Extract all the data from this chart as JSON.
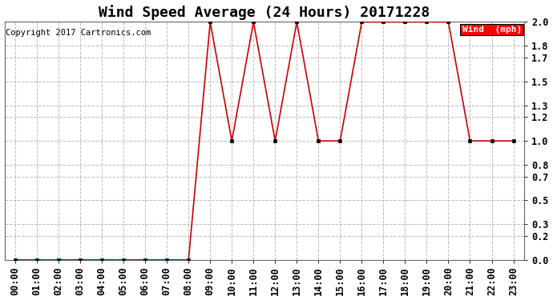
{
  "title": "Wind Speed Average (24 Hours) 20171228",
  "copyright": "Copyright 2017 Cartronics.com",
  "legend_label": "Wind  (mph)",
  "legend_bg": "#ff0000",
  "legend_text_color": "#ffffff",
  "line_color": "#cc0000",
  "marker_color": "#000000",
  "background_color": "#ffffff",
  "grid_color": "#bbbbbb",
  "hours": [
    "00:00",
    "01:00",
    "02:00",
    "03:00",
    "04:00",
    "05:00",
    "06:00",
    "07:00",
    "08:00",
    "09:00",
    "10:00",
    "11:00",
    "12:00",
    "13:00",
    "14:00",
    "15:00",
    "16:00",
    "17:00",
    "18:00",
    "19:00",
    "20:00",
    "21:00",
    "22:00",
    "23:00"
  ],
  "wind_values": [
    0.0,
    0.0,
    0.0,
    0.0,
    0.0,
    0.0,
    0.0,
    0.0,
    0.0,
    2.0,
    1.0,
    2.0,
    1.0,
    2.0,
    1.0,
    1.0,
    2.0,
    2.0,
    2.0,
    2.0,
    2.0,
    1.0,
    1.0,
    1.0
  ],
  "ylim": [
    0.0,
    2.0
  ],
  "yticks": [
    0.0,
    0.2,
    0.3,
    0.5,
    0.7,
    0.8,
    1.0,
    1.2,
    1.3,
    1.5,
    1.7,
    1.8,
    2.0
  ],
  "ytick_labels": [
    "0.0",
    "0.2",
    "0.3",
    "0.5",
    "0.7",
    "0.8",
    "1.0",
    "1.2",
    "1.3",
    "1.5",
    "1.7",
    "1.8",
    "2.0"
  ],
  "title_fontsize": 13,
  "tick_fontsize": 8.5,
  "copyright_fontsize": 7.5,
  "legend_fontsize": 8
}
